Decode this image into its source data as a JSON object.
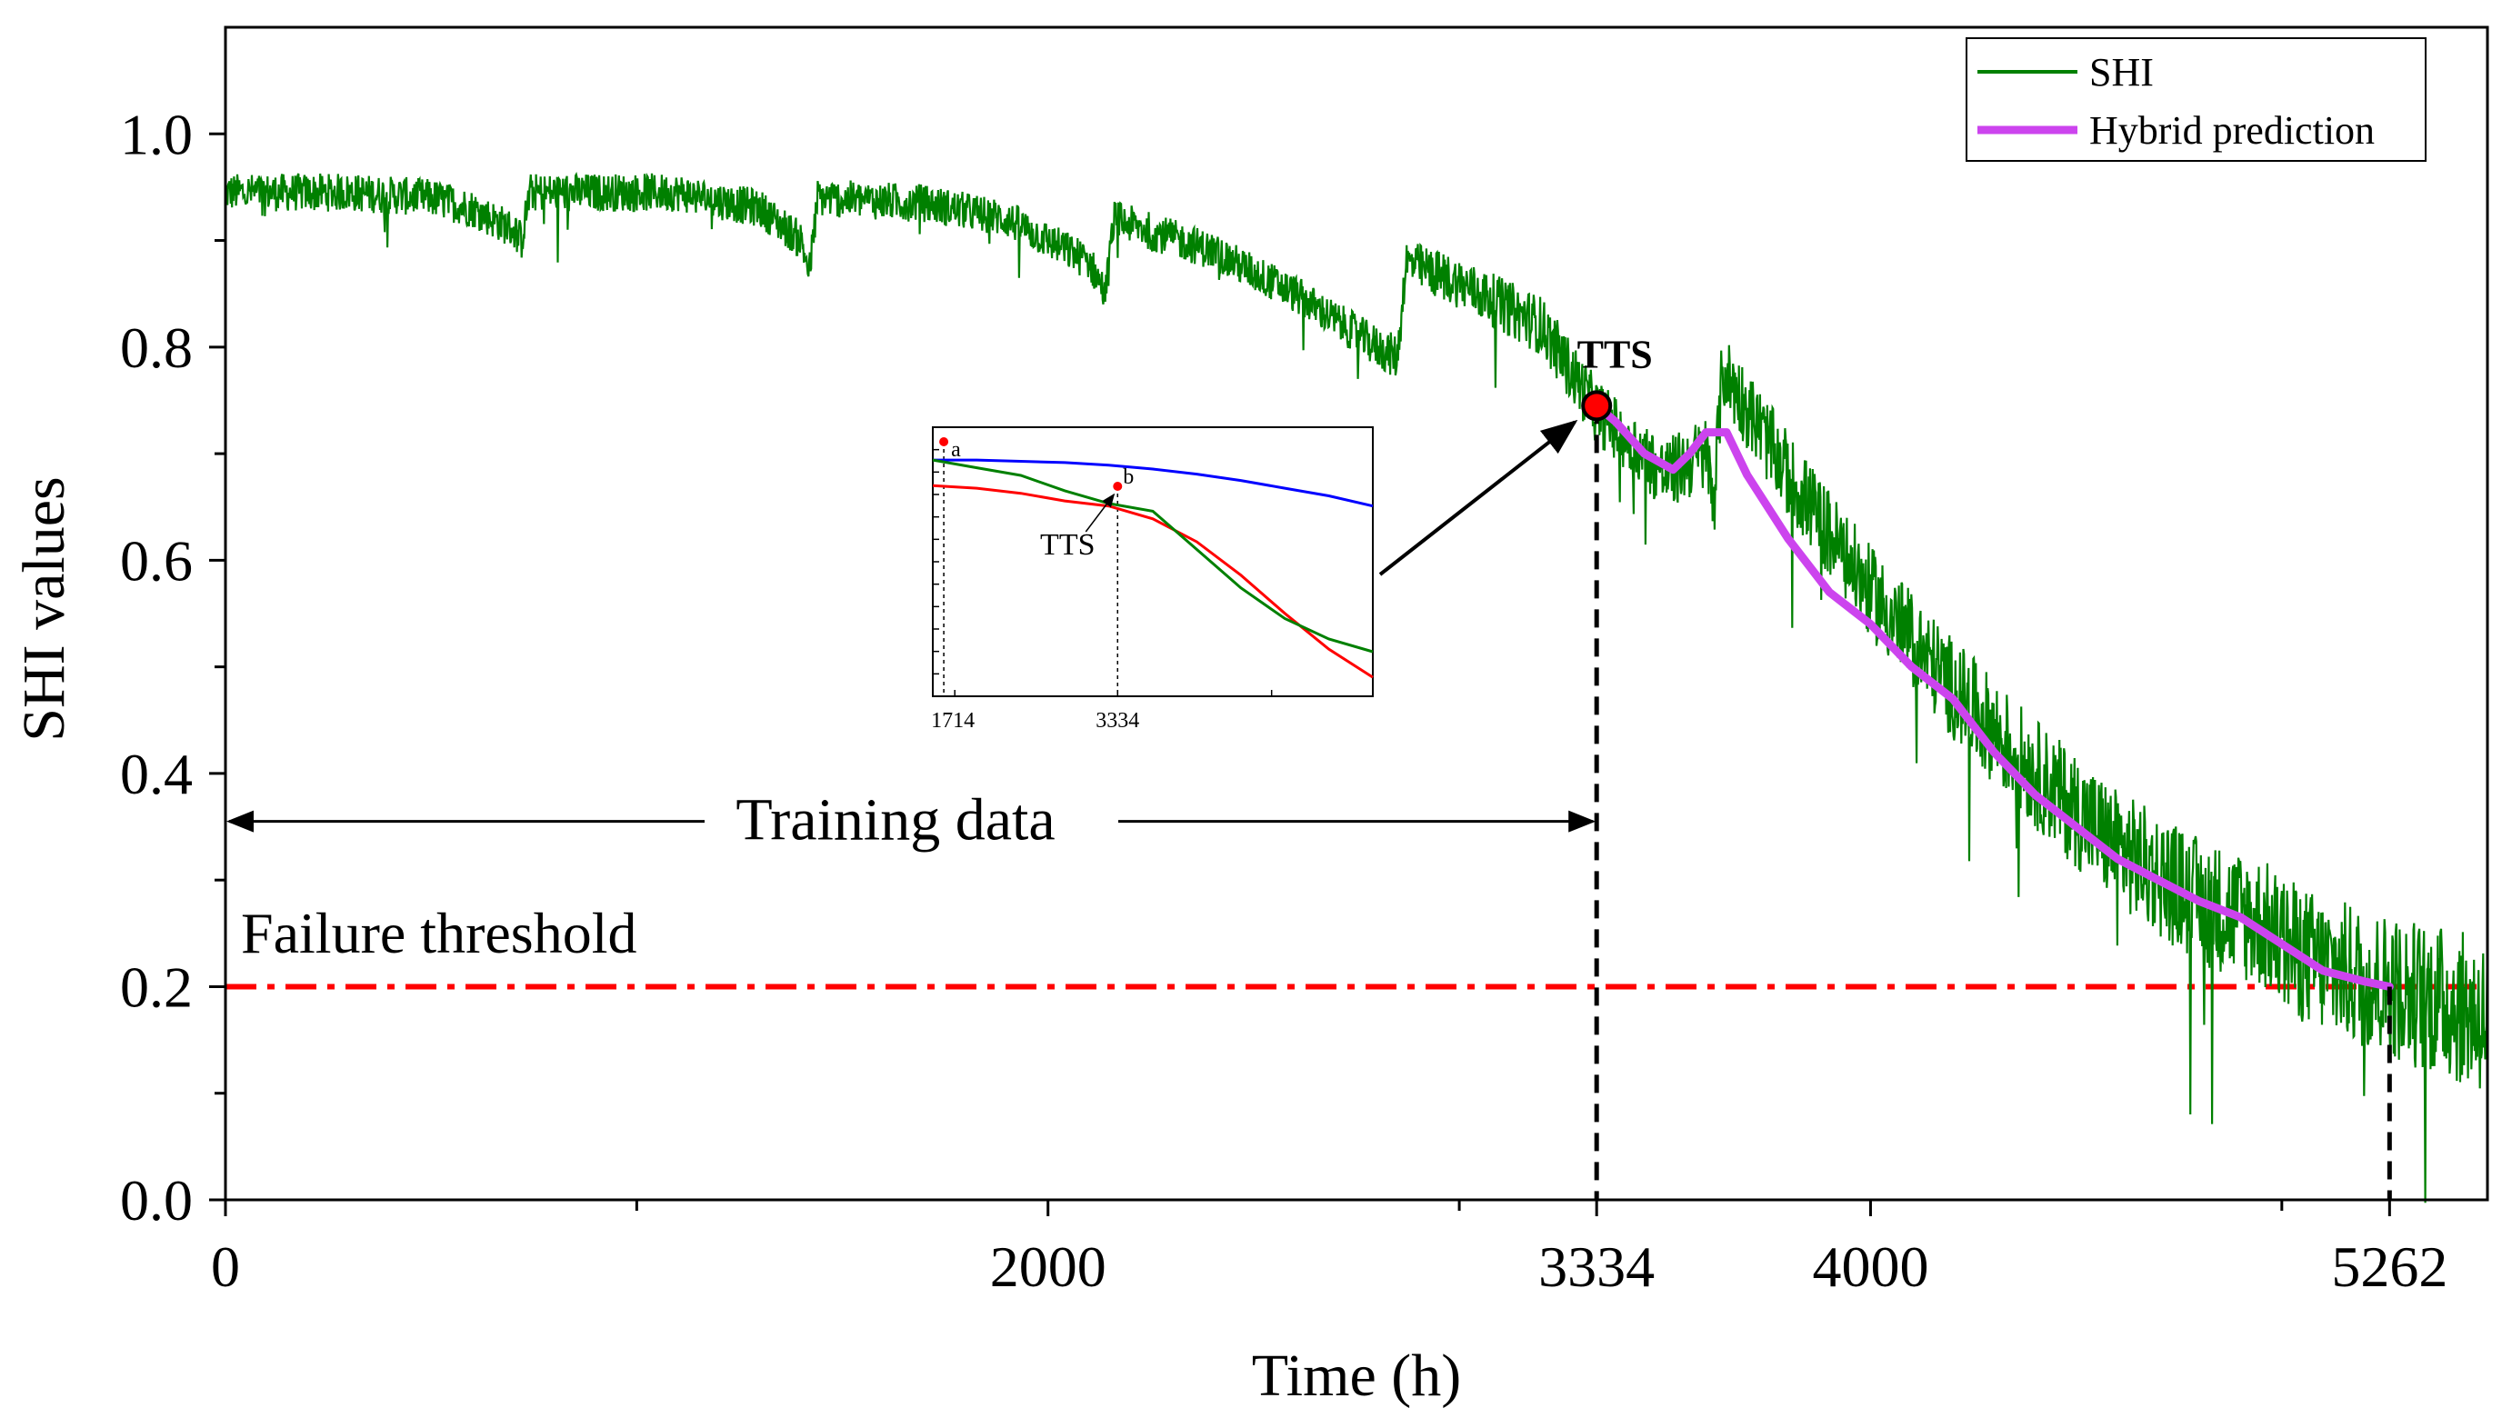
{
  "chart_data": {
    "type": "line",
    "xlabel": "Time (h)",
    "ylabel": "SHI values",
    "xlim": [
      0,
      5500
    ],
    "ylim": [
      0,
      1.1
    ],
    "x_ticks": [
      0,
      2000,
      3334,
      4000,
      5262
    ],
    "x_tick_labels": [
      "0",
      "2000",
      "3334",
      "4000",
      "5262"
    ],
    "x_minor_ticks": [
      1000,
      3000,
      5000
    ],
    "y_ticks": [
      0.0,
      0.2,
      0.4,
      0.6,
      0.8,
      1.0
    ],
    "y_tick_labels": [
      "0.0",
      "0.2",
      "0.4",
      "0.6",
      "0.8",
      "1.0"
    ],
    "y_minor_ticks": [
      0.1,
      0.3,
      0.5,
      0.7,
      0.9
    ],
    "legend_position": "top-right",
    "series": [
      {
        "name": "SHI",
        "color": "#008000",
        "noise": 0.018,
        "x": [
          0,
          300,
          500,
          600,
          700,
          720,
          740,
          900,
          1100,
          1300,
          1400,
          1420,
          1440,
          1700,
          1900,
          2100,
          2140,
          2160,
          2400,
          2600,
          2800,
          2850,
          2870,
          3000,
          3200,
          3334,
          3500,
          3600,
          3620,
          3640,
          3800,
          4000,
          4200,
          4400,
          4600,
          4800,
          4950,
          5000,
          5100,
          5262,
          5400,
          5500
        ],
        "values": [
          0.945,
          0.945,
          0.94,
          0.93,
          0.91,
          0.9,
          0.945,
          0.945,
          0.945,
          0.93,
          0.9,
          0.87,
          0.94,
          0.935,
          0.92,
          0.88,
          0.85,
          0.92,
          0.89,
          0.85,
          0.8,
          0.79,
          0.88,
          0.86,
          0.82,
          0.74,
          0.68,
          0.7,
          0.66,
          0.78,
          0.68,
          0.57,
          0.48,
          0.4,
          0.33,
          0.28,
          0.26,
          0.24,
          0.22,
          0.2,
          0.185,
          0.17
        ]
      },
      {
        "name": "Hybrid prediction",
        "color": "#cc44ee",
        "x": [
          3334,
          3380,
          3450,
          3520,
          3560,
          3600,
          3650,
          3700,
          3800,
          3900,
          4000,
          4100,
          4200,
          4300,
          4400,
          4500,
          4600,
          4700,
          4800,
          4900,
          5000,
          5100,
          5200,
          5262
        ],
        "values": [
          0.745,
          0.73,
          0.7,
          0.685,
          0.7,
          0.72,
          0.72,
          0.68,
          0.62,
          0.57,
          0.54,
          0.5,
          0.47,
          0.42,
          0.38,
          0.35,
          0.32,
          0.3,
          0.28,
          0.265,
          0.24,
          0.215,
          0.205,
          0.2
        ]
      }
    ],
    "threshold": {
      "value": 0.2,
      "label": "Failure threshold",
      "color": "#ff0000"
    },
    "annotations": {
      "tts_label": "TTS",
      "tts_x": 3334,
      "tts_y": 0.745,
      "training_label": "Training data",
      "training_range": [
        0,
        3334
      ],
      "training_y": 0.355,
      "end_x": 5262,
      "end_y": 0.2
    },
    "inset": {
      "x_ticks": [
        "1714",
        "3334"
      ],
      "point_a_label": "a",
      "point_b_label": "b",
      "tts_label": "TTS",
      "curves": [
        {
          "name": "blue",
          "color": "#0000ff",
          "values": [
            0.9,
            0.9,
            0.895,
            0.89,
            0.88,
            0.865,
            0.845,
            0.82,
            0.79,
            0.76,
            0.72
          ]
        },
        {
          "name": "red",
          "color": "#ff0000",
          "values": [
            0.8,
            0.79,
            0.77,
            0.74,
            0.72,
            0.67,
            0.58,
            0.45,
            0.3,
            0.16,
            0.05
          ]
        },
        {
          "name": "green",
          "color": "#008000",
          "values": [
            0.9,
            0.87,
            0.84,
            0.78,
            0.73,
            0.7,
            0.55,
            0.4,
            0.28,
            0.2,
            0.15
          ]
        }
      ]
    }
  }
}
